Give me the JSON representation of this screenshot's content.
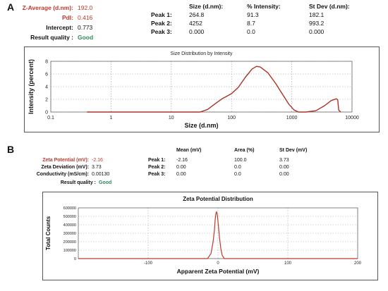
{
  "panelA": {
    "letter": "A",
    "summary": [
      {
        "label": "Z-Average (d.nm):",
        "value": "192.0",
        "label_color": "#c0392b",
        "value_color": "#c0392b"
      },
      {
        "label": "PdI:",
        "value": "0.416",
        "label_color": "#c0392b",
        "value_color": "#c0392b"
      },
      {
        "label": "Intercept:",
        "value": "0.773",
        "label_color": "#111111",
        "value_color": "#111111"
      },
      {
        "label": "Result quality :",
        "value": "Good",
        "label_color": "#111111",
        "value_color": "#2e8b57"
      }
    ],
    "table_headers": [
      "Size (d.nm):",
      "% Intensity:",
      "St Dev (d.nm):"
    ],
    "table_rows": [
      {
        "name": "Peak 1:",
        "cells": [
          "264.8",
          "91.3",
          "182.1"
        ]
      },
      {
        "name": "Peak 2:",
        "cells": [
          "4252",
          "8.7",
          "993.2"
        ]
      },
      {
        "name": "Peak 3:",
        "cells": [
          "0.000",
          "0.0",
          "0.000"
        ]
      }
    ]
  },
  "panelB": {
    "letter": "B",
    "summary": [
      {
        "label": "Zeta Potential (mV):",
        "value": "-2.16",
        "label_color": "#c0392b",
        "value_color": "#c0392b"
      },
      {
        "label": "Zeta Deviation (mV):",
        "value": "3.73",
        "label_color": "#111111",
        "value_color": "#111111"
      },
      {
        "label": "Conductivity (mS/cm):",
        "value": "0.00130",
        "label_color": "#111111",
        "value_color": "#111111"
      },
      {
        "label": "Result quality :",
        "value": "Good",
        "label_color": "#111111",
        "value_color": "#2e8b57"
      }
    ],
    "table_headers": [
      "Mean (mV)",
      "Area (%)",
      "St Dev (mV)"
    ],
    "table_rows": [
      {
        "name": "Peak 1:",
        "cells": [
          "-2.16",
          "100.0",
          "3.73"
        ]
      },
      {
        "name": "Peak 2:",
        "cells": [
          "0.00",
          "0.0",
          "0.00"
        ]
      },
      {
        "name": "Peak 3:",
        "cells": [
          "0.00",
          "0.0",
          "0.00"
        ]
      }
    ]
  },
  "chart_data": [
    {
      "type": "line",
      "title": "Size Distribution by Intensity",
      "xlabel": "Size (d.nm)",
      "ylabel": "Intensity (percent)",
      "xscale": "log",
      "xlim": [
        0.1,
        10000
      ],
      "ylim": [
        0,
        8
      ],
      "xticks": [
        "0.1",
        "1",
        "10",
        "100",
        "1000",
        "10000"
      ],
      "yticks": [
        "0",
        "2",
        "4",
        "6",
        "8"
      ],
      "grid": true,
      "color": "#a93226",
      "series": [
        {
          "x": [
            0.4,
            1,
            10,
            30,
            40,
            50,
            70,
            100,
            130,
            170,
            220,
            260,
            300,
            400,
            550,
            700,
            900,
            1100,
            1300,
            1700,
            2500,
            3500,
            4500,
            5500,
            5800,
            6000,
            6500
          ],
          "y": [
            0,
            0,
            0,
            0,
            0.4,
            1.1,
            2.1,
            2.9,
            3.9,
            5.5,
            6.8,
            7.2,
            7.1,
            6.2,
            4.4,
            2.8,
            1.2,
            0.3,
            0,
            0,
            0.2,
            1.0,
            1.8,
            2.1,
            1.9,
            0.3,
            0
          ]
        }
      ]
    },
    {
      "type": "line",
      "title": "Zeta Potential Distribution",
      "xlabel": "Apparent Zeta Potential (mV)",
      "ylabel": "Total Counts",
      "xlim": [
        -200,
        200
      ],
      "ylim": [
        0,
        600000
      ],
      "xticks": [
        "-100",
        "0",
        "100",
        "200"
      ],
      "yticks": [
        "0",
        "100000",
        "200000",
        "300000",
        "400000",
        "500000",
        "600000"
      ],
      "grid": true,
      "color": "#c0392b",
      "series": [
        {
          "x": [
            -200,
            -15,
            -10,
            -7,
            -5,
            -4,
            -3,
            -2.16,
            -1,
            0,
            2,
            4,
            6,
            9,
            200
          ],
          "y": [
            0,
            0,
            60000,
            200000,
            340000,
            460000,
            530000,
            555000,
            520000,
            440000,
            260000,
            120000,
            40000,
            0,
            0
          ]
        }
      ]
    }
  ]
}
